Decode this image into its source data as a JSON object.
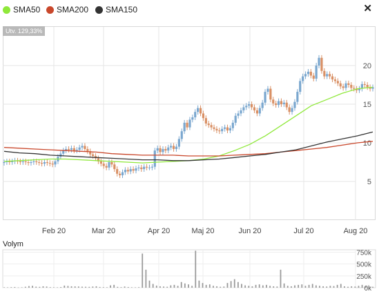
{
  "legend": {
    "items": [
      {
        "label": "SMA50",
        "color": "#8fe83a"
      },
      {
        "label": "SMA200",
        "color": "#c9472b"
      },
      {
        "label": "SMA150",
        "color": "#333333"
      }
    ],
    "close_icon": "close-icon"
  },
  "badge": "Utv. 129,33%",
  "volume_title": "Volym",
  "chart_data": [
    {
      "type": "candlestick",
      "x_ticks": [
        "Feb 20",
        "Mar 20",
        "Apr 20",
        "Maj 20",
        "Jun 20",
        "Jul 20",
        "Aug 20"
      ],
      "y_ticks": [
        "5",
        "10",
        "15",
        "20"
      ],
      "ylim": [
        0,
        25
      ],
      "grid": true,
      "price_series": [
        {
          "name": "close",
          "values": [
            7.5,
            7.6,
            7.5,
            7.6,
            7.7,
            7.6,
            7.5,
            7.6,
            7.5,
            7.4,
            7.5,
            7.6,
            7.5,
            7.4,
            7.3,
            7.5,
            7.4,
            7.3,
            7.2,
            7.6,
            8.2,
            8.6,
            9.0,
            9.2,
            9.1,
            9.3,
            9.0,
            9.1,
            9.4,
            9.6,
            9.2,
            8.9,
            8.5,
            8.3,
            8.0,
            7.6,
            7.3,
            7.0,
            6.8,
            7.5,
            7.2,
            6.6,
            6.0,
            5.8,
            6.2,
            6.5,
            6.3,
            6.6,
            6.4,
            6.7,
            6.8,
            6.6,
            6.9,
            6.8,
            6.8,
            6.9,
            9.0,
            9.3,
            8.8,
            9.2,
            9.0,
            9.4,
            9.6,
            9.2,
            9.5,
            10.5,
            11.5,
            12.6,
            12.0,
            13.0,
            13.3,
            14.0,
            14.5,
            13.8,
            13.2,
            12.5,
            12.3,
            12.0,
            11.8,
            11.6,
            11.5,
            11.8,
            12.0,
            11.6,
            11.9,
            12.6,
            13.5,
            13.8,
            14.2,
            14.6,
            14.8,
            15.0,
            14.6,
            14.2,
            13.8,
            14.5,
            15.2,
            16.6,
            17.0,
            15.6,
            15.1,
            14.9,
            15.4,
            15.0,
            15.2,
            14.6,
            14.0,
            14.5,
            15.3,
            16.6,
            18.0,
            18.6,
            18.9,
            19.2,
            18.7,
            18.3,
            20.0,
            21.0,
            19.3,
            18.6,
            18.9,
            18.6,
            18.2,
            18.0,
            17.7,
            17.3,
            17.1,
            17.7,
            17.5,
            17.1,
            17.0,
            16.8,
            17.0,
            17.6,
            17.5,
            17.2,
            17.0,
            17.2
          ]
        },
        {
          "name": "SMA50",
          "values": [
            7.6,
            7.7,
            7.8,
            7.9,
            7.9,
            7.8,
            7.7,
            7.6,
            7.5,
            7.4,
            7.5,
            7.6,
            7.7,
            7.9,
            8.3,
            9.0,
            9.8,
            10.9,
            12.2,
            13.5,
            14.8,
            15.6,
            16.4,
            17.0,
            17.2
          ]
        },
        {
          "name": "SMA200",
          "values": [
            9.4,
            9.3,
            9.2,
            9.1,
            9.0,
            8.9,
            8.8,
            8.6,
            8.5,
            8.4,
            8.4,
            8.4,
            8.3,
            8.3,
            8.3,
            8.4,
            8.5,
            8.6,
            8.8,
            9.0,
            9.2,
            9.4,
            9.7,
            10.0,
            10.2
          ]
        },
        {
          "name": "SMA150",
          "values": [
            8.9,
            8.7,
            8.6,
            8.4,
            8.3,
            8.2,
            8.1,
            8.0,
            7.9,
            7.8,
            7.8,
            7.7,
            7.7,
            7.8,
            7.9,
            8.1,
            8.3,
            8.5,
            8.8,
            9.1,
            9.6,
            10.1,
            10.5,
            10.9,
            11.4
          ]
        }
      ]
    },
    {
      "type": "bar",
      "title": "Volym",
      "y_ticks": [
        "0k",
        "250k",
        "500k",
        "750k"
      ],
      "ylim": [
        0,
        800000
      ],
      "values": [
        10000,
        8000,
        12000,
        15000,
        6000,
        9000,
        20000,
        35000,
        40000,
        22000,
        18000,
        30000,
        25000,
        12000,
        10000,
        8000,
        14000,
        45000,
        38000,
        30000,
        28000,
        26000,
        22000,
        20000,
        18000,
        25000,
        30000,
        16000,
        12000,
        10000,
        50000,
        60000,
        18000,
        12000,
        25000,
        15000,
        10000,
        8000,
        12000,
        720000,
        380000,
        150000,
        80000,
        45000,
        30000,
        25000,
        20000,
        50000,
        60000,
        40000,
        120000,
        90000,
        70000,
        40000,
        780000,
        150000,
        100000,
        60000,
        70000,
        40000,
        30000,
        20000,
        25000,
        100000,
        140000,
        180000,
        120000,
        80000,
        50000,
        40000,
        30000,
        60000,
        70000,
        50000,
        60000,
        40000,
        30000,
        25000,
        380000,
        90000,
        40000,
        30000,
        50000,
        60000,
        70000,
        40000,
        60000,
        80000,
        50000,
        40000,
        30000,
        25000,
        40000,
        35000,
        60000,
        80000,
        30000,
        20000,
        30000,
        25000,
        40000,
        60000,
        30000,
        25000,
        20000
      ]
    }
  ]
}
